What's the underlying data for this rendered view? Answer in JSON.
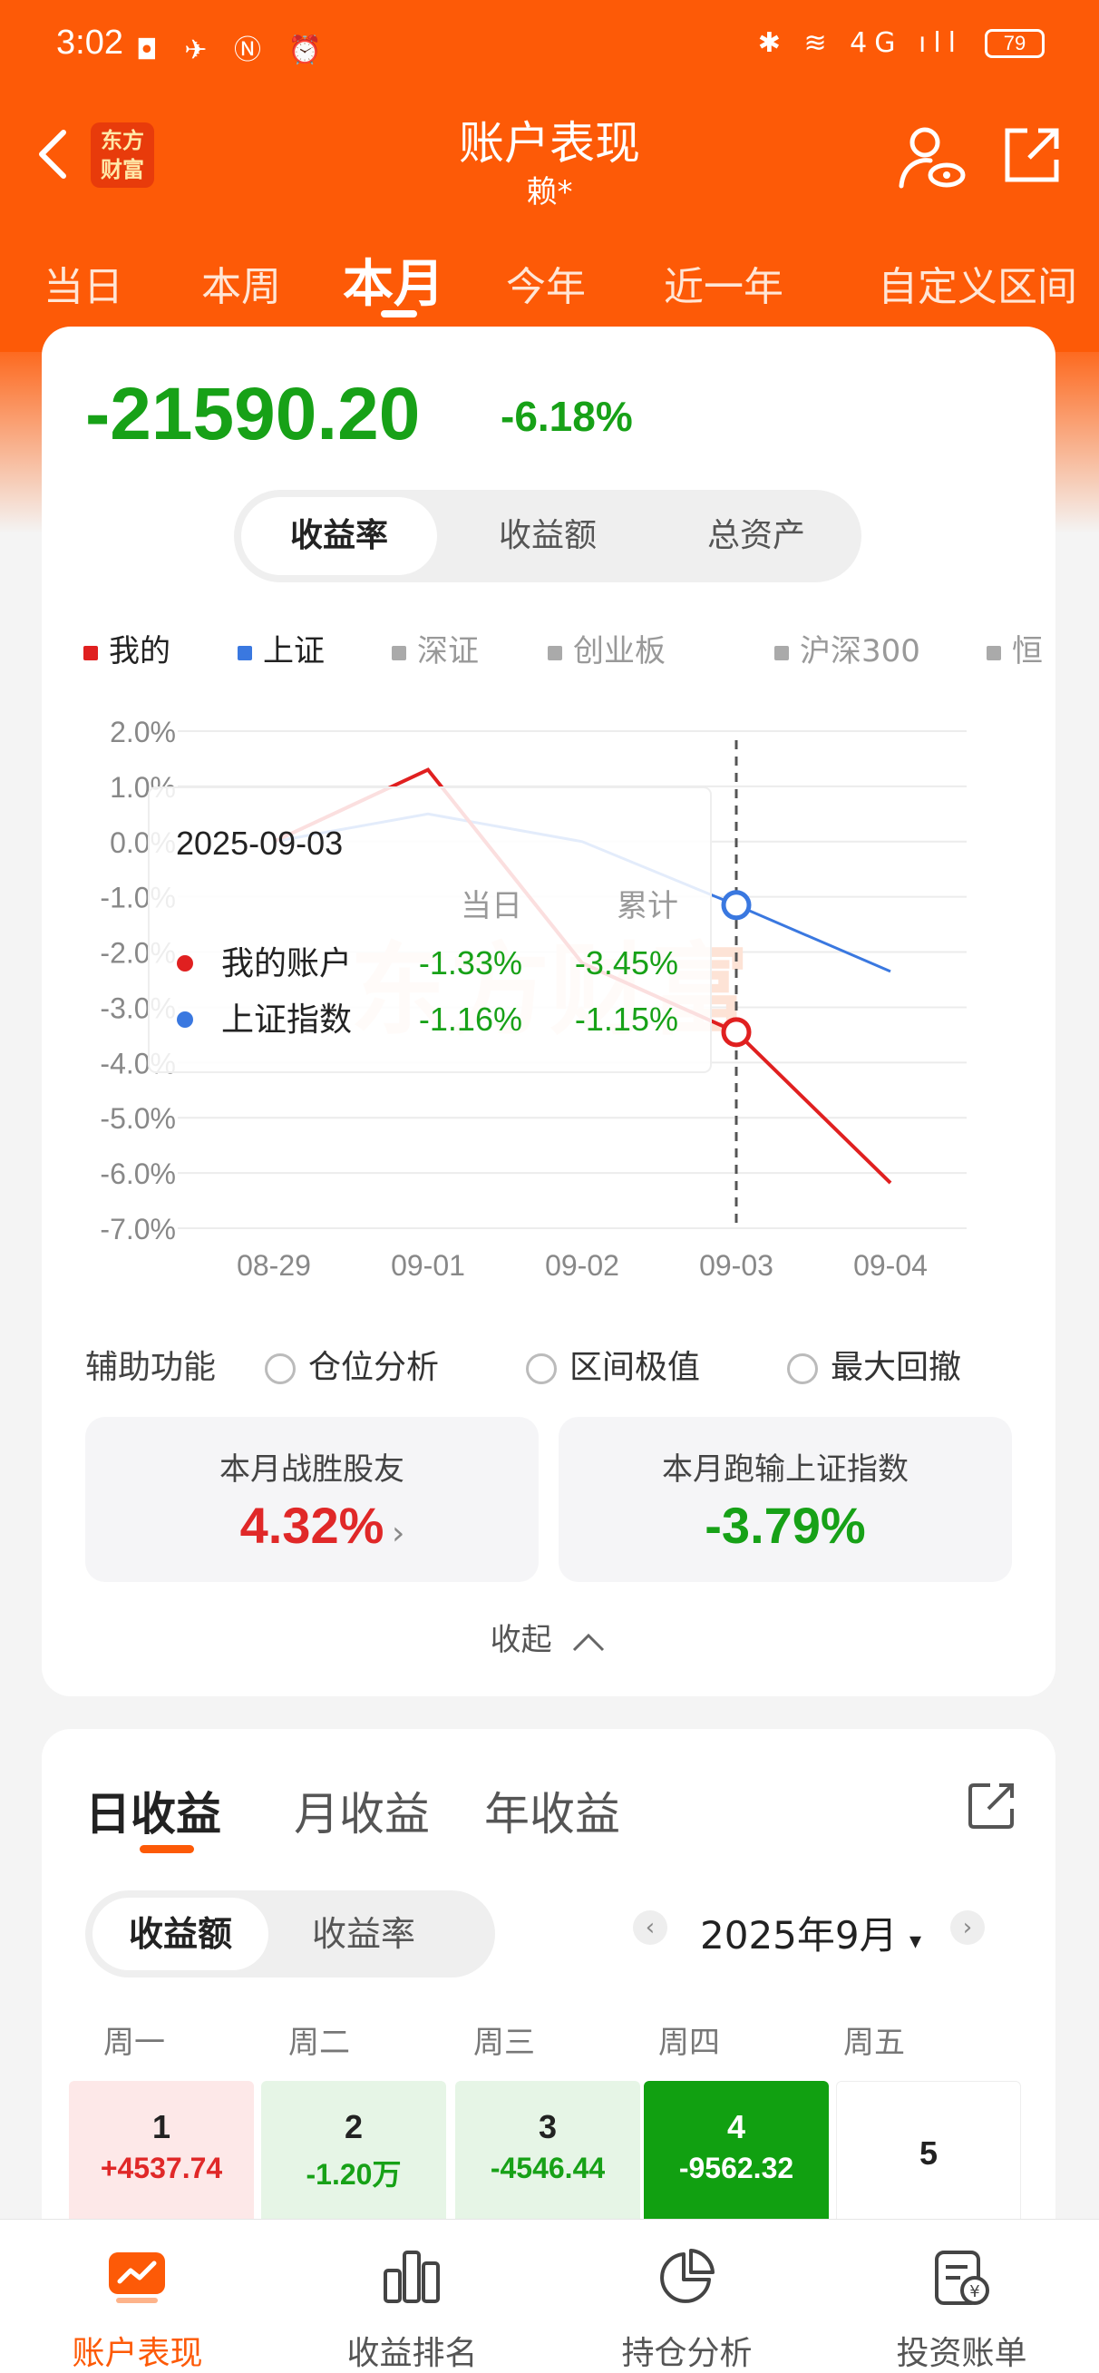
{
  "status_bar": {
    "time": "3:02",
    "left_icons": "◘ ✈ Ⓝ ⏰",
    "right_icons": "✱ ≋ 4G ıll",
    "battery": "79"
  },
  "header": {
    "logo_text_line1": "东方",
    "logo_text_line2": "财富",
    "title": "账户表现",
    "subtitle": "赖*",
    "tabs": [
      "当日",
      "本周",
      "本月",
      "今年",
      "近一年",
      "自定义区间"
    ],
    "active_tab": "本月"
  },
  "summary": {
    "amount": "-21590.20",
    "percent": "-6.18%",
    "segments": [
      "收益率",
      "收益额",
      "总资产"
    ],
    "active_segment": "收益率"
  },
  "legend": [
    {
      "name": "我的",
      "color": "#e02020"
    },
    {
      "name": "上证",
      "color": "#3a78e0"
    },
    {
      "name": "深证",
      "color": "#aaaaaa"
    },
    {
      "name": "创业板",
      "color": "#aaaaaa"
    },
    {
      "name": "沪深300",
      "color": "#aaaaaa"
    },
    {
      "name": "恒",
      "color": "#aaaaaa"
    }
  ],
  "chart_data": {
    "type": "line",
    "x": [
      "08-29",
      "09-01",
      "09-02",
      "09-03",
      "09-04"
    ],
    "y_ticks": [
      "2.0%",
      "1.0%",
      "0.0%",
      "-1.0%",
      "-2.0%",
      "-3.0%",
      "-4.0%",
      "-5.0%",
      "-6.0%",
      "-7.0%"
    ],
    "ylim": [
      -7.0,
      2.0
    ],
    "series": [
      {
        "name": "我的",
        "color": "#e02020",
        "values": [
          0.0,
          1.3,
          -2.2,
          -3.45,
          -6.18
        ]
      },
      {
        "name": "上证",
        "color": "#3a78e0",
        "values": [
          0.0,
          0.5,
          0.0,
          -1.15,
          -2.35
        ]
      }
    ],
    "highlight_index": 3,
    "watermark": "东方财富",
    "tooltip": {
      "date": "2025-09-03",
      "col1": "当日",
      "col2": "累计",
      "rows": [
        {
          "label": "我的账户",
          "color": "#e02020",
          "daily": "-1.33%",
          "cumulative": "-3.45%"
        },
        {
          "label": "上证指数",
          "color": "#3a78e0",
          "daily": "-1.16%",
          "cumulative": "-1.15%"
        }
      ]
    }
  },
  "assist": {
    "label": "辅助功能",
    "options": [
      "仓位分析",
      "区间极值",
      "最大回撤"
    ]
  },
  "stats": [
    {
      "label": "本月战胜股友",
      "value": "4.32%",
      "color": "#e02828",
      "chevron": "›"
    },
    {
      "label": "本月跑输上证指数",
      "value": "-3.79%",
      "color": "#17a117"
    }
  ],
  "collapse_label": "收起",
  "profit": {
    "tabs": [
      "日收益",
      "月收益",
      "年收益"
    ],
    "active_tab": "日收益",
    "segments": [
      "收益额",
      "收益率"
    ],
    "active_segment": "收益额",
    "month": "2025年9月",
    "month_arrow": "▾",
    "prev": "‹",
    "next": "›",
    "weekdays": [
      "周一",
      "周二",
      "周三",
      "周四",
      "周五"
    ],
    "days": [
      {
        "day": "1",
        "value": "+4537.74",
        "bg": "#fde8e8",
        "fg": "#e02828"
      },
      {
        "day": "2",
        "value": "-1.20万",
        "bg": "#e6f5e6",
        "fg": "#17a117"
      },
      {
        "day": "3",
        "value": "-4546.44",
        "bg": "#e6f5e6",
        "fg": "#17a117"
      },
      {
        "day": "4",
        "value": "-9562.32",
        "bg": "#11a011",
        "fg": "#ffffff"
      },
      {
        "day": "5",
        "value": "",
        "bg": "#ffffff",
        "fg": "#222222"
      }
    ]
  },
  "bottom_nav": [
    {
      "label": "账户表现",
      "icon": "chart-line-icon",
      "active": true
    },
    {
      "label": "收益排名",
      "icon": "bar-chart-icon",
      "active": false
    },
    {
      "label": "持仓分析",
      "icon": "pie-chart-icon",
      "active": false
    },
    {
      "label": "投资账单",
      "icon": "bill-icon",
      "active": false
    }
  ]
}
